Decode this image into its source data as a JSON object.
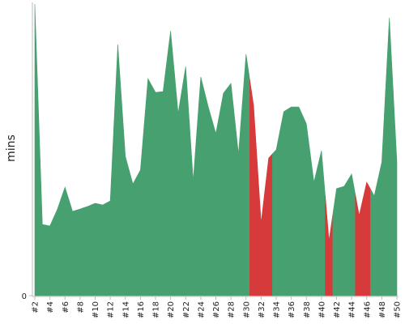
{
  "chart_data": {
    "type": "area",
    "ylabel": "mins",
    "categories": [
      "#2",
      null,
      "#4",
      null,
      "#6",
      null,
      "#8",
      null,
      "#10",
      null,
      "#12",
      null,
      "#14",
      null,
      "#16",
      null,
      "#18",
      null,
      "#20",
      null,
      "#22",
      null,
      "#24",
      null,
      "#26",
      null,
      "#28",
      null,
      "#30",
      null,
      "#32",
      null,
      "#34",
      null,
      "#36",
      null,
      "#38",
      null,
      "#40",
      null,
      "#42",
      null,
      "#44",
      null,
      "#46",
      null,
      "#48",
      null,
      "#50"
    ],
    "values": [
      100,
      24.4,
      23.9,
      29.7,
      37.2,
      28.9,
      29.7,
      30.6,
      31.7,
      31.1,
      32.5,
      86.1,
      47.8,
      38.3,
      43.1,
      74.4,
      69.7,
      70,
      90.8,
      62.5,
      78.6,
      39.4,
      75,
      64.7,
      55.6,
      69.4,
      72.8,
      48.6,
      82.8,
      65.3,
      25,
      47.2,
      50,
      63.1,
      64.7,
      64.7,
      58.9,
      38.9,
      49.7,
      18.9,
      36.7,
      37.5,
      41.7,
      27.5,
      38.9,
      34.2,
      45.8,
      95.3,
      45.8
    ],
    "colors": [
      "#47a06f",
      "#47a06f",
      "#47a06f",
      "#47a06f",
      "#47a06f",
      "#47a06f",
      "#47a06f",
      "#47a06f",
      "#47a06f",
      "#47a06f",
      "#47a06f",
      "#47a06f",
      "#47a06f",
      "#47a06f",
      "#47a06f",
      "#47a06f",
      "#47a06f",
      "#47a06f",
      "#47a06f",
      "#47a06f",
      "#47a06f",
      "#47a06f",
      "#47a06f",
      "#47a06f",
      "#47a06f",
      "#47a06f",
      "#47a06f",
      "#47a06f",
      "#47a06f",
      "#d63a3a",
      "#d63a3a",
      "#d63a3a",
      "#47a06f",
      "#47a06f",
      "#47a06f",
      "#47a06f",
      "#47a06f",
      "#47a06f",
      "#47a06f",
      "#d63a3a",
      "#47a06f",
      "#47a06f",
      "#47a06f",
      "#d63a3a",
      "#d63a3a",
      "#47a06f",
      "#47a06f",
      "#47a06f",
      "#47a06f"
    ],
    "ylim": [
      0,
      100
    ],
    "yticks": [
      0
    ]
  }
}
